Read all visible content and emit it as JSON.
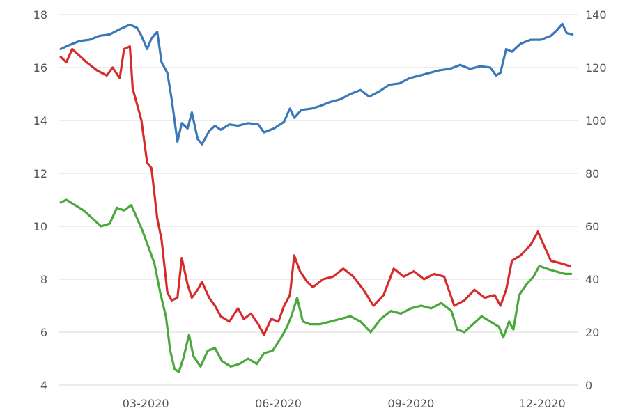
{
  "chart_data": {
    "type": "line",
    "x_axis": {
      "type": "date",
      "range": [
        "2020-01-01",
        "2020-12-26"
      ],
      "ticks": [
        {
          "date": "2020-03-01",
          "label": "03-2020"
        },
        {
          "date": "2020-06-01",
          "label": "06-2020"
        },
        {
          "date": "2020-09-01",
          "label": "09-2020"
        },
        {
          "date": "2020-12-01",
          "label": "12-2020"
        }
      ]
    },
    "y_left": {
      "range": [
        4,
        18
      ],
      "ticks": [
        4,
        6,
        8,
        10,
        12,
        14,
        16,
        18
      ]
    },
    "y_right": {
      "range": [
        0,
        140
      ],
      "ticks": [
        0,
        20,
        40,
        60,
        80,
        100,
        120,
        140
      ]
    },
    "grid": true,
    "legend": "none",
    "series": [
      {
        "color": "#3a78b8",
        "axis": "right",
        "points": [
          [
            "2020-01-02",
            127.0
          ],
          [
            "2020-01-08",
            128.5
          ],
          [
            "2020-01-15",
            130.0
          ],
          [
            "2020-01-22",
            130.5
          ],
          [
            "2020-01-29",
            132.0
          ],
          [
            "2020-02-05",
            132.5
          ],
          [
            "2020-02-12",
            134.5
          ],
          [
            "2020-02-19",
            136.2
          ],
          [
            "2020-02-24",
            135.0
          ],
          [
            "2020-02-27",
            132.0
          ],
          [
            "2020-03-02",
            127.0
          ],
          [
            "2020-03-05",
            131.0
          ],
          [
            "2020-03-09",
            133.5
          ],
          [
            "2020-03-12",
            122.0
          ],
          [
            "2020-03-16",
            118.0
          ],
          [
            "2020-03-19",
            108.0
          ],
          [
            "2020-03-23",
            92.0
          ],
          [
            "2020-03-26",
            99.0
          ],
          [
            "2020-03-30",
            97.0
          ],
          [
            "2020-04-02",
            103.0
          ],
          [
            "2020-04-06",
            93.0
          ],
          [
            "2020-04-09",
            91.0
          ],
          [
            "2020-04-14",
            96.0
          ],
          [
            "2020-04-18",
            98.0
          ],
          [
            "2020-04-22",
            96.5
          ],
          [
            "2020-04-28",
            98.5
          ],
          [
            "2020-05-04",
            98.0
          ],
          [
            "2020-05-11",
            99.0
          ],
          [
            "2020-05-18",
            98.5
          ],
          [
            "2020-05-22",
            95.5
          ],
          [
            "2020-05-29",
            97.0
          ],
          [
            "2020-06-05",
            99.5
          ],
          [
            "2020-06-09",
            104.5
          ],
          [
            "2020-06-12",
            101.0
          ],
          [
            "2020-06-17",
            104.0
          ],
          [
            "2020-06-24",
            104.5
          ],
          [
            "2020-06-30",
            105.5
          ],
          [
            "2020-07-07",
            107.0
          ],
          [
            "2020-07-14",
            108.0
          ],
          [
            "2020-07-21",
            110.0
          ],
          [
            "2020-07-28",
            111.5
          ],
          [
            "2020-08-03",
            109.0
          ],
          [
            "2020-08-10",
            111.0
          ],
          [
            "2020-08-17",
            113.5
          ],
          [
            "2020-08-24",
            114.0
          ],
          [
            "2020-08-31",
            116.0
          ],
          [
            "2020-09-07",
            117.0
          ],
          [
            "2020-09-14",
            118.0
          ],
          [
            "2020-09-21",
            119.0
          ],
          [
            "2020-09-28",
            119.5
          ],
          [
            "2020-10-05",
            121.0
          ],
          [
            "2020-10-12",
            119.5
          ],
          [
            "2020-10-19",
            120.5
          ],
          [
            "2020-10-26",
            120.0
          ],
          [
            "2020-10-30",
            117.0
          ],
          [
            "2020-11-02",
            118.0
          ],
          [
            "2020-11-06",
            127.0
          ],
          [
            "2020-11-10",
            126.0
          ],
          [
            "2020-11-16",
            129.0
          ],
          [
            "2020-11-23",
            130.5
          ],
          [
            "2020-11-30",
            130.5
          ],
          [
            "2020-12-07",
            132.0
          ],
          [
            "2020-12-11",
            134.0
          ],
          [
            "2020-12-15",
            136.5
          ],
          [
            "2020-12-18",
            133.0
          ],
          [
            "2020-12-22",
            132.5
          ]
        ]
      },
      {
        "color": "#d62b2b",
        "axis": "left",
        "points": [
          [
            "2020-01-02",
            16.4
          ],
          [
            "2020-01-06",
            16.2
          ],
          [
            "2020-01-10",
            16.7
          ],
          [
            "2020-01-14",
            16.5
          ],
          [
            "2020-01-20",
            16.2
          ],
          [
            "2020-01-27",
            15.9
          ],
          [
            "2020-02-03",
            15.7
          ],
          [
            "2020-02-07",
            16.0
          ],
          [
            "2020-02-12",
            15.6
          ],
          [
            "2020-02-15",
            16.7
          ],
          [
            "2020-02-19",
            16.8
          ],
          [
            "2020-02-21",
            15.2
          ],
          [
            "2020-02-24",
            14.6
          ],
          [
            "2020-02-27",
            14.0
          ],
          [
            "2020-03-02",
            12.4
          ],
          [
            "2020-03-05",
            12.2
          ],
          [
            "2020-03-09",
            10.3
          ],
          [
            "2020-03-12",
            9.5
          ],
          [
            "2020-03-16",
            7.5
          ],
          [
            "2020-03-19",
            7.2
          ],
          [
            "2020-03-23",
            7.3
          ],
          [
            "2020-03-26",
            8.8
          ],
          [
            "2020-03-30",
            7.8
          ],
          [
            "2020-04-02",
            7.3
          ],
          [
            "2020-04-06",
            7.6
          ],
          [
            "2020-04-09",
            7.9
          ],
          [
            "2020-04-14",
            7.3
          ],
          [
            "2020-04-18",
            7.0
          ],
          [
            "2020-04-22",
            6.6
          ],
          [
            "2020-04-28",
            6.4
          ],
          [
            "2020-05-04",
            6.9
          ],
          [
            "2020-05-08",
            6.5
          ],
          [
            "2020-05-13",
            6.7
          ],
          [
            "2020-05-18",
            6.3
          ],
          [
            "2020-05-22",
            5.9
          ],
          [
            "2020-05-27",
            6.5
          ],
          [
            "2020-06-01",
            6.4
          ],
          [
            "2020-06-05",
            7.0
          ],
          [
            "2020-06-09",
            7.4
          ],
          [
            "2020-06-12",
            8.9
          ],
          [
            "2020-06-16",
            8.3
          ],
          [
            "2020-06-21",
            7.9
          ],
          [
            "2020-06-25",
            7.7
          ],
          [
            "2020-07-02",
            8.0
          ],
          [
            "2020-07-09",
            8.1
          ],
          [
            "2020-07-16",
            8.4
          ],
          [
            "2020-07-23",
            8.1
          ],
          [
            "2020-07-30",
            7.6
          ],
          [
            "2020-08-06",
            7.0
          ],
          [
            "2020-08-13",
            7.4
          ],
          [
            "2020-08-20",
            8.4
          ],
          [
            "2020-08-27",
            8.1
          ],
          [
            "2020-09-03",
            8.3
          ],
          [
            "2020-09-10",
            8.0
          ],
          [
            "2020-09-17",
            8.2
          ],
          [
            "2020-09-24",
            8.1
          ],
          [
            "2020-10-01",
            7.0
          ],
          [
            "2020-10-08",
            7.2
          ],
          [
            "2020-10-15",
            7.6
          ],
          [
            "2020-10-22",
            7.3
          ],
          [
            "2020-10-29",
            7.4
          ],
          [
            "2020-11-02",
            7.0
          ],
          [
            "2020-11-06",
            7.6
          ],
          [
            "2020-11-10",
            8.7
          ],
          [
            "2020-11-16",
            8.9
          ],
          [
            "2020-11-23",
            9.3
          ],
          [
            "2020-11-28",
            9.8
          ],
          [
            "2020-12-02",
            9.3
          ],
          [
            "2020-12-07",
            8.7
          ],
          [
            "2020-12-14",
            8.6
          ],
          [
            "2020-12-20",
            8.5
          ]
        ]
      },
      {
        "color": "#4aa83c",
        "axis": "left",
        "points": [
          [
            "2020-01-02",
            10.9
          ],
          [
            "2020-01-06",
            11.0
          ],
          [
            "2020-01-12",
            10.8
          ],
          [
            "2020-01-18",
            10.6
          ],
          [
            "2020-01-24",
            10.3
          ],
          [
            "2020-01-30",
            10.0
          ],
          [
            "2020-02-05",
            10.1
          ],
          [
            "2020-02-10",
            10.7
          ],
          [
            "2020-02-15",
            10.6
          ],
          [
            "2020-02-20",
            10.8
          ],
          [
            "2020-02-24",
            10.3
          ],
          [
            "2020-02-28",
            9.8
          ],
          [
            "2020-03-03",
            9.2
          ],
          [
            "2020-03-07",
            8.6
          ],
          [
            "2020-03-11",
            7.5
          ],
          [
            "2020-03-15",
            6.6
          ],
          [
            "2020-03-18",
            5.3
          ],
          [
            "2020-03-21",
            4.6
          ],
          [
            "2020-03-24",
            4.5
          ],
          [
            "2020-03-27",
            5.0
          ],
          [
            "2020-03-31",
            5.9
          ],
          [
            "2020-04-03",
            5.1
          ],
          [
            "2020-04-08",
            4.7
          ],
          [
            "2020-04-13",
            5.3
          ],
          [
            "2020-04-18",
            5.4
          ],
          [
            "2020-04-23",
            4.9
          ],
          [
            "2020-04-29",
            4.7
          ],
          [
            "2020-05-05",
            4.8
          ],
          [
            "2020-05-11",
            5.0
          ],
          [
            "2020-05-17",
            4.8
          ],
          [
            "2020-05-22",
            5.2
          ],
          [
            "2020-05-28",
            5.3
          ],
          [
            "2020-06-03",
            5.8
          ],
          [
            "2020-06-07",
            6.2
          ],
          [
            "2020-06-10",
            6.6
          ],
          [
            "2020-06-14",
            7.3
          ],
          [
            "2020-06-18",
            6.4
          ],
          [
            "2020-06-23",
            6.3
          ],
          [
            "2020-06-30",
            6.3
          ],
          [
            "2020-07-07",
            6.4
          ],
          [
            "2020-07-14",
            6.5
          ],
          [
            "2020-07-21",
            6.6
          ],
          [
            "2020-07-28",
            6.4
          ],
          [
            "2020-08-04",
            6.0
          ],
          [
            "2020-08-11",
            6.5
          ],
          [
            "2020-08-18",
            6.8
          ],
          [
            "2020-08-25",
            6.7
          ],
          [
            "2020-09-01",
            6.9
          ],
          [
            "2020-09-08",
            7.0
          ],
          [
            "2020-09-15",
            6.9
          ],
          [
            "2020-09-22",
            7.1
          ],
          [
            "2020-09-29",
            6.8
          ],
          [
            "2020-10-03",
            6.1
          ],
          [
            "2020-10-08",
            6.0
          ],
          [
            "2020-10-14",
            6.3
          ],
          [
            "2020-10-20",
            6.6
          ],
          [
            "2020-10-26",
            6.4
          ],
          [
            "2020-11-01",
            6.2
          ],
          [
            "2020-11-04",
            5.8
          ],
          [
            "2020-11-08",
            6.4
          ],
          [
            "2020-11-11",
            6.1
          ],
          [
            "2020-11-15",
            7.4
          ],
          [
            "2020-11-20",
            7.8
          ],
          [
            "2020-11-25",
            8.1
          ],
          [
            "2020-11-29",
            8.5
          ],
          [
            "2020-12-04",
            8.4
          ],
          [
            "2020-12-10",
            8.3
          ],
          [
            "2020-12-17",
            8.2
          ],
          [
            "2020-12-21",
            8.2
          ]
        ]
      }
    ]
  }
}
